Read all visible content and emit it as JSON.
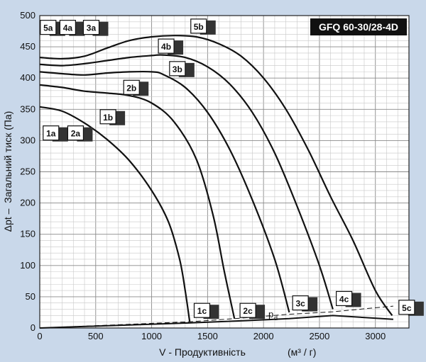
{
  "chart_data": {
    "type": "line",
    "title": "GFQ 60-30/28-4D",
    "xlabel": "V - Продуктивність",
    "xunit": "(м³ / г)",
    "ylabel": "Загальний тиск (Па)",
    "ylabel_symbol": "Δpt –",
    "xlim": [
      0,
      3300
    ],
    "ylim": [
      0,
      500
    ],
    "x_ticks": [
      0,
      500,
      1000,
      1500,
      2000,
      2500,
      3000
    ],
    "y_ticks": [
      0,
      50,
      100,
      150,
      200,
      250,
      300,
      350,
      400,
      450,
      500
    ],
    "grid": true,
    "series": [
      {
        "name": "1",
        "points": [
          [
            0,
            354
          ],
          [
            200,
            347
          ],
          [
            400,
            328
          ],
          [
            600,
            302
          ],
          [
            800,
            268
          ],
          [
            1000,
            220
          ],
          [
            1150,
            170
          ],
          [
            1250,
            110
          ],
          [
            1300,
            60
          ],
          [
            1340,
            10
          ]
        ]
      },
      {
        "name": "2",
        "points": [
          [
            0,
            389
          ],
          [
            200,
            385
          ],
          [
            400,
            379
          ],
          [
            600,
            376
          ],
          [
            800,
            372
          ],
          [
            1000,
            360
          ],
          [
            1200,
            330
          ],
          [
            1400,
            270
          ],
          [
            1550,
            180
          ],
          [
            1650,
            90
          ],
          [
            1740,
            15
          ]
        ]
      },
      {
        "name": "3",
        "points": [
          [
            0,
            410
          ],
          [
            200,
            407
          ],
          [
            400,
            405
          ],
          [
            600,
            408
          ],
          [
            800,
            410
          ],
          [
            1000,
            410
          ],
          [
            1100,
            406
          ],
          [
            1300,
            385
          ],
          [
            1500,
            345
          ],
          [
            1700,
            285
          ],
          [
            1900,
            205
          ],
          [
            2100,
            110
          ],
          [
            2230,
            25
          ]
        ]
      },
      {
        "name": "4",
        "points": [
          [
            0,
            422
          ],
          [
            200,
            420
          ],
          [
            400,
            423
          ],
          [
            600,
            428
          ],
          [
            800,
            433
          ],
          [
            1000,
            436
          ],
          [
            1100,
            437
          ],
          [
            1300,
            433
          ],
          [
            1500,
            418
          ],
          [
            1700,
            390
          ],
          [
            1900,
            345
          ],
          [
            2100,
            280
          ],
          [
            2300,
            195
          ],
          [
            2500,
            100
          ],
          [
            2620,
            30
          ]
        ]
      },
      {
        "name": "5",
        "points": [
          [
            0,
            433
          ],
          [
            200,
            431
          ],
          [
            400,
            435
          ],
          [
            600,
            448
          ],
          [
            800,
            460
          ],
          [
            1000,
            466
          ],
          [
            1200,
            468
          ],
          [
            1400,
            466
          ],
          [
            1600,
            455
          ],
          [
            1800,
            435
          ],
          [
            2000,
            400
          ],
          [
            2200,
            350
          ],
          [
            2400,
            285
          ],
          [
            2600,
            210
          ],
          [
            2800,
            140
          ],
          [
            3000,
            60
          ],
          [
            3150,
            20
          ]
        ]
      }
    ],
    "system_line": {
      "name": "pd",
      "points": [
        [
          0,
          0
        ],
        [
          1330,
          8
        ],
        [
          1740,
          11
        ],
        [
          2230,
          15
        ],
        [
          2620,
          20
        ],
        [
          3160,
          14
        ]
      ]
    },
    "dashed_line": {
      "points": [
        [
          0,
          0
        ],
        [
          1340,
          10
        ],
        [
          1740,
          15
        ],
        [
          2230,
          22
        ],
        [
          2620,
          26
        ],
        [
          3160,
          35
        ]
      ]
    },
    "labels": [
      {
        "text": "5a",
        "x": 75,
        "y": 480
      },
      {
        "text": "4a",
        "x": 250,
        "y": 480
      },
      {
        "text": "3a",
        "x": 460,
        "y": 480
      },
      {
        "text": "5b",
        "x": 1420,
        "y": 482
      },
      {
        "text": "4b",
        "x": 1130,
        "y": 450
      },
      {
        "text": "3b",
        "x": 1230,
        "y": 414
      },
      {
        "text": "2b",
        "x": 820,
        "y": 384
      },
      {
        "text": "1b",
        "x": 610,
        "y": 337
      },
      {
        "text": "1a",
        "x": 100,
        "y": 311
      },
      {
        "text": "2a",
        "x": 320,
        "y": 311
      },
      {
        "text": "1c",
        "x": 1450,
        "y": 27
      },
      {
        "text": "2c",
        "x": 1860,
        "y": 27
      },
      {
        "text": "3c",
        "x": 2330,
        "y": 39
      },
      {
        "text": "4c",
        "x": 2720,
        "y": 46
      },
      {
        "text": "5c",
        "x": 3280,
        "y": 32
      }
    ],
    "pd_label": "p",
    "pd_sub": "d"
  }
}
